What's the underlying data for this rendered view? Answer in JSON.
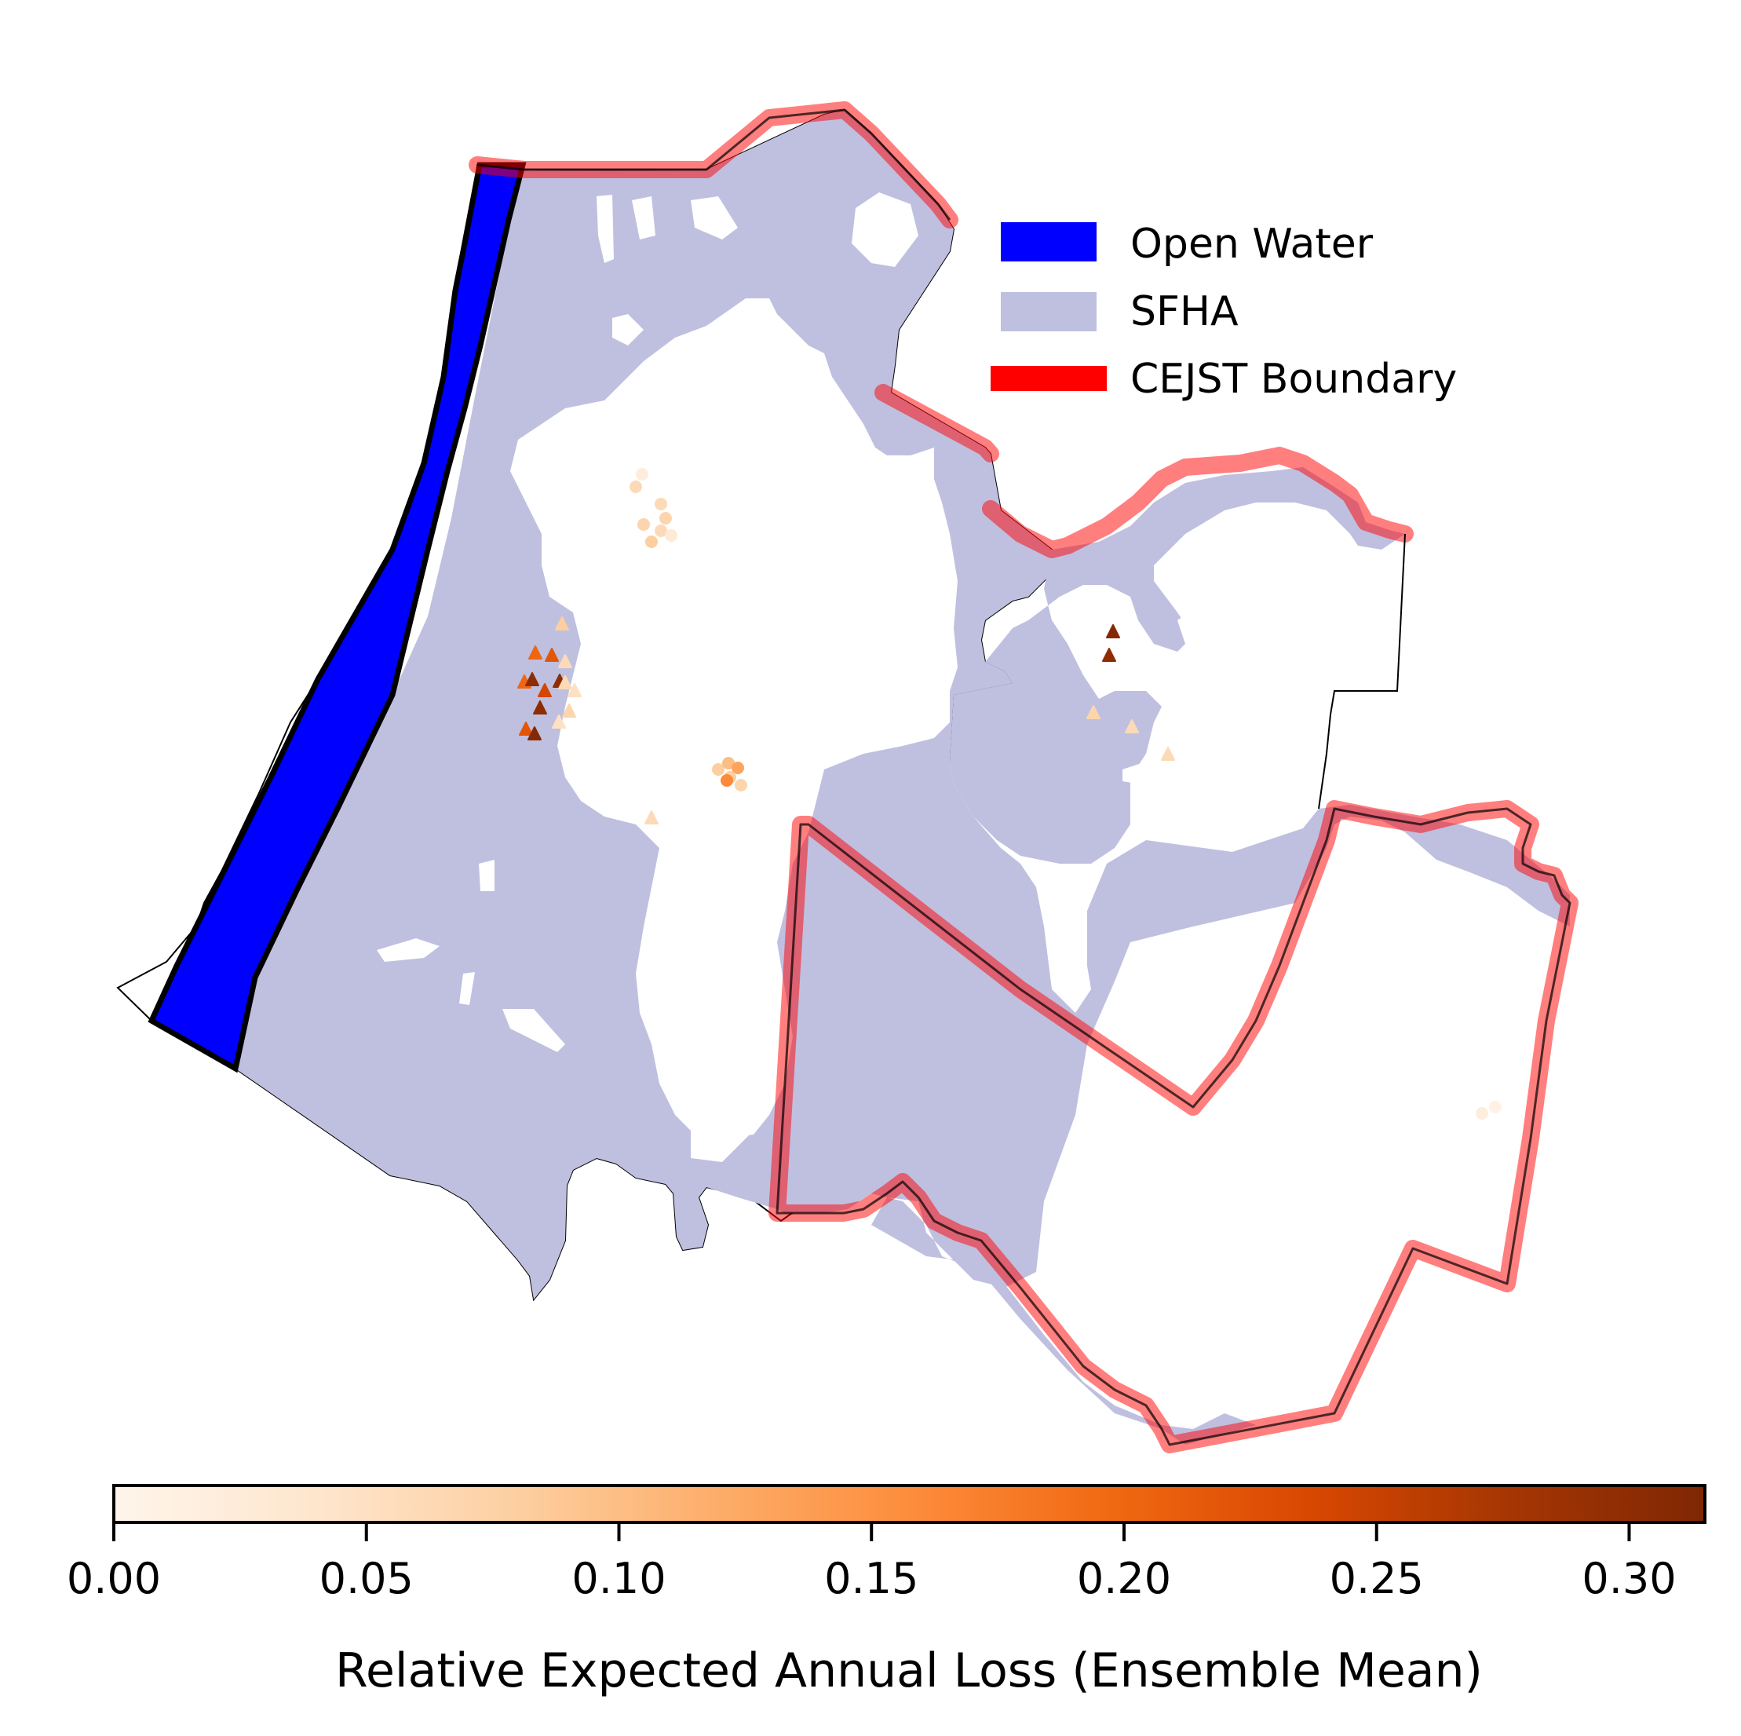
{
  "legend": {
    "items": [
      {
        "label": "Open Water",
        "color": "#0000ff"
      },
      {
        "label": "SFHA",
        "color": "#bfc0e0"
      },
      {
        "label": "CEJST Boundary",
        "color": "#ff0000"
      }
    ]
  },
  "colorbar": {
    "label": "Relative Expected Annual Loss (Ensemble Mean)",
    "min": 0.0,
    "max": 0.315,
    "ticks": [
      "0.00",
      "0.05",
      "0.10",
      "0.15",
      "0.20",
      "0.25",
      "0.30"
    ],
    "tick_values": [
      0.0,
      0.05,
      0.1,
      0.15,
      0.2,
      0.25,
      0.3
    ],
    "colormap": "Oranges",
    "stops": [
      "#fff5eb",
      "#fee6ce",
      "#fdd0a2",
      "#fdae6b",
      "#fd8d3c",
      "#f16913",
      "#d94801",
      "#a63603",
      "#7f2704"
    ]
  },
  "points": [
    {
      "shape": "circle",
      "value": 0.02
    },
    {
      "shape": "circle",
      "value": 0.06
    },
    {
      "shape": "circle",
      "value": 0.07
    },
    {
      "shape": "circle",
      "value": 0.06
    },
    {
      "shape": "circle",
      "value": 0.07
    },
    {
      "shape": "circle",
      "value": 0.08
    },
    {
      "shape": "circle",
      "value": 0.06
    },
    {
      "shape": "circle",
      "value": 0.03
    },
    {
      "shape": "triangle",
      "value": 0.08
    },
    {
      "shape": "triangle",
      "value": 0.2
    },
    {
      "shape": "triangle",
      "value": 0.22
    },
    {
      "shape": "triangle",
      "value": 0.06
    },
    {
      "shape": "triangle",
      "value": 0.2
    },
    {
      "shape": "triangle",
      "value": 0.3
    },
    {
      "shape": "triangle",
      "value": 0.24
    },
    {
      "shape": "triangle",
      "value": 0.3
    },
    {
      "shape": "triangle",
      "value": 0.3
    },
    {
      "shape": "triangle",
      "value": 0.06
    },
    {
      "shape": "triangle",
      "value": 0.05
    },
    {
      "shape": "triangle",
      "value": 0.22
    },
    {
      "shape": "triangle",
      "value": 0.31
    },
    {
      "shape": "triangle",
      "value": 0.05
    },
    {
      "shape": "triangle",
      "value": 0.07
    },
    {
      "shape": "circle",
      "value": 0.08
    },
    {
      "shape": "circle",
      "value": 0.1
    },
    {
      "shape": "circle",
      "value": 0.13
    },
    {
      "shape": "circle",
      "value": 0.08
    },
    {
      "shape": "circle",
      "value": 0.16
    },
    {
      "shape": "circle",
      "value": 0.07
    },
    {
      "shape": "triangle",
      "value": 0.06
    },
    {
      "shape": "triangle",
      "value": 0.31
    },
    {
      "shape": "triangle",
      "value": 0.3
    },
    {
      "shape": "triangle",
      "value": 0.07
    },
    {
      "shape": "triangle",
      "value": 0.06
    },
    {
      "shape": "triangle",
      "value": 0.06
    },
    {
      "shape": "circle",
      "value": 0.02
    },
    {
      "shape": "circle",
      "value": 0.01
    }
  ]
}
